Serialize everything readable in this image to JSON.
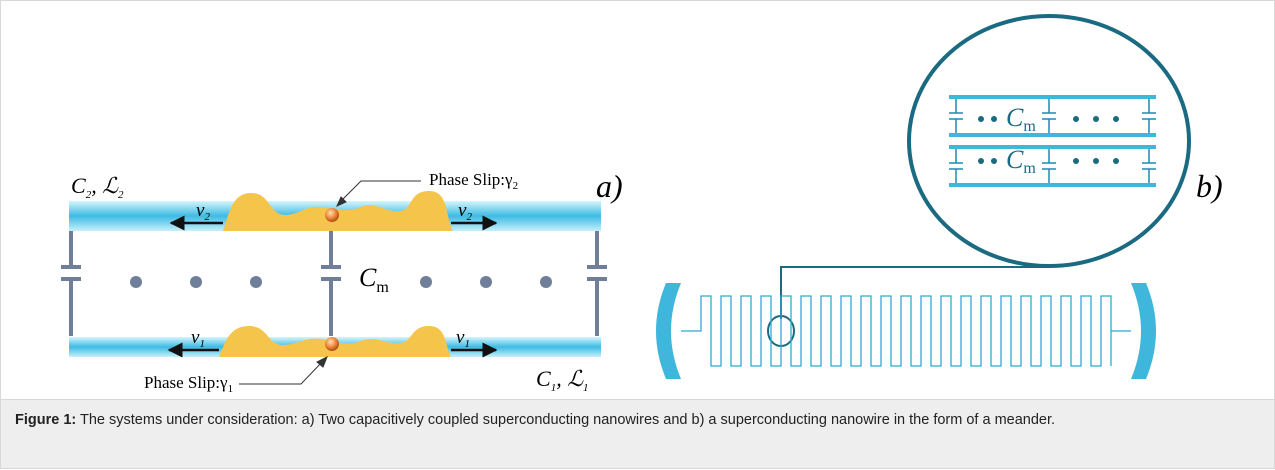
{
  "panel_a": {
    "label": "a)",
    "top_wire_label": [
      [
        "C",
        "2"
      ],
      [
        ", ℒ",
        "2"
      ]
    ],
    "bottom_wire_label": [
      [
        "C",
        "1"
      ],
      [
        ", ℒ",
        "1"
      ]
    ],
    "top_phase_slip": [
      "Phase Slip:γ",
      "2"
    ],
    "bottom_phase_slip": [
      "Phase Slip:γ",
      "1"
    ],
    "top_velocity_left": [
      "v",
      "2"
    ],
    "top_velocity_right": [
      "v",
      "2"
    ],
    "bottom_velocity_left": [
      "v",
      "1"
    ],
    "bottom_velocity_right": [
      "v",
      "1"
    ],
    "coupling_capacitance": [
      "C",
      "m"
    ]
  },
  "panel_b": {
    "label": "b)",
    "zoom_capacitance_top": [
      "C",
      "m"
    ],
    "zoom_capacitance_bottom": [
      "C",
      "m"
    ]
  },
  "caption": {
    "label": "Figure 1:",
    "text": "The systems under consideration: a) Two capacitively coupled superconducting nanowires and b) a superconducting nanowire in the form of a meander."
  }
}
